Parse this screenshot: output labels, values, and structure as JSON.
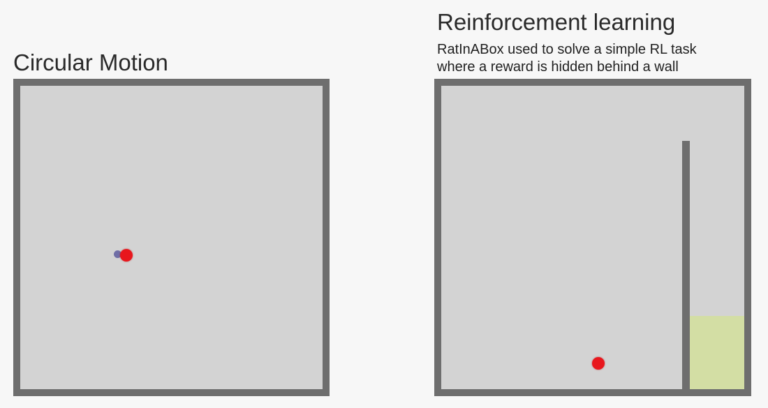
{
  "left_panel": {
    "title": "Circular Motion"
  },
  "right_panel": {
    "title": "Reinforcement learning",
    "subtitle_line1": "RatInABox used to solve a simple RL task",
    "subtitle_line2": "where a reward is hidden behind a wall"
  },
  "colors": {
    "agent": "#e8171d",
    "agent_trail": "#5d5c9e",
    "wall": "#6e6e6e",
    "arena_floor": "#d3d3d3",
    "reward_zone": "#d3dea4"
  }
}
